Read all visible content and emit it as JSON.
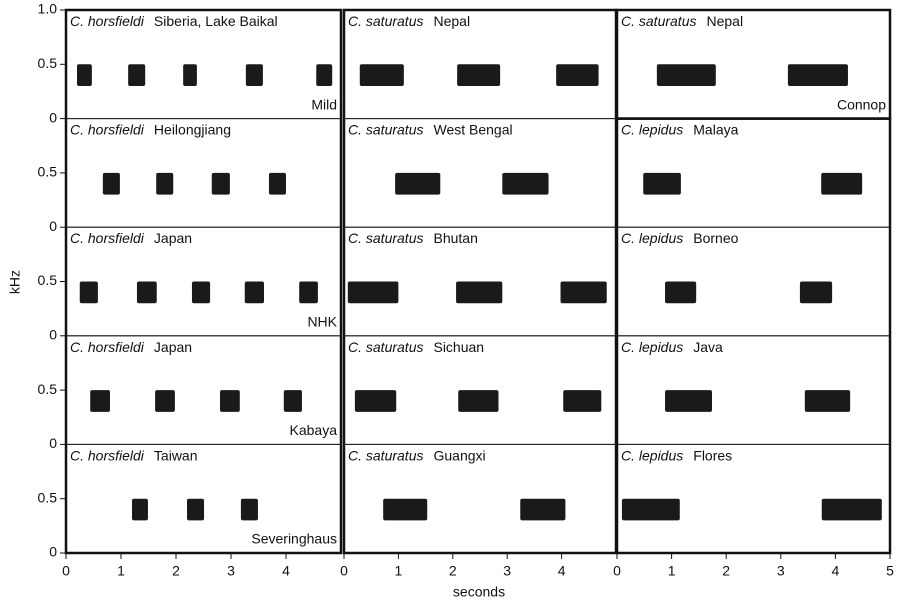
{
  "chart_data": {
    "type": "sonogram",
    "x_label": "seconds",
    "y_label": "kHz",
    "xlim": [
      0,
      5
    ],
    "ylim": [
      0,
      1
    ],
    "note_band": [
      0.3,
      0.5
    ],
    "color": "#1a1a1a",
    "rows": [
      {
        "yticks": [
          0,
          0.5,
          {
            "value": 1,
            "label": "1.0"
          }
        ]
      },
      {
        "yticks": [
          0,
          0.5
        ]
      },
      {
        "yticks": [
          0,
          0.5
        ]
      },
      {
        "yticks": [
          0,
          0.5
        ]
      },
      {
        "yticks": [
          0,
          0.5
        ]
      }
    ],
    "columns": [
      {
        "xticks": [
          0,
          1,
          2,
          3,
          4
        ],
        "panels": [
          {
            "species": "C. horsfieldi",
            "location": "Siberia, Lake Baikal",
            "credit": "Mild",
            "notes": [
              [
                0.2,
                0.47
              ],
              [
                1.13,
                1.44
              ],
              [
                2.13,
                2.38
              ],
              [
                3.27,
                3.58
              ],
              [
                4.55,
                4.84
              ]
            ]
          },
          {
            "species": "C. horsfieldi",
            "location": "Heilongjiang",
            "notes": [
              [
                0.67,
                0.98
              ],
              [
                1.64,
                1.95
              ],
              [
                2.65,
                2.98
              ],
              [
                3.69,
                4.0
              ]
            ]
          },
          {
            "species": "C. horsfieldi",
            "location": "Japan",
            "credit": "NHK",
            "notes": [
              [
                0.25,
                0.58
              ],
              [
                1.29,
                1.65
              ],
              [
                2.29,
                2.62
              ],
              [
                3.25,
                3.6
              ],
              [
                4.24,
                4.58
              ]
            ]
          },
          {
            "species": "C. horsfieldi",
            "location": "Japan",
            "credit": "Kabaya",
            "notes": [
              [
                0.44,
                0.8
              ],
              [
                1.62,
                1.98
              ],
              [
                2.8,
                3.16
              ],
              [
                3.96,
                4.29
              ]
            ]
          },
          {
            "species": "C. horsfieldi",
            "location": "Taiwan",
            "credit": "Severinghaus",
            "notes": [
              [
                1.2,
                1.49
              ],
              [
                2.2,
                2.51
              ],
              [
                3.18,
                3.49
              ]
            ]
          }
        ]
      },
      {
        "xticks": [
          0,
          1,
          2,
          3,
          4
        ],
        "panels": [
          {
            "species": "C. saturatus",
            "location": "Nepal",
            "notes": [
              [
                0.29,
                1.1
              ],
              [
                2.08,
                2.87
              ],
              [
                3.9,
                4.68
              ]
            ]
          },
          {
            "species": "C. saturatus",
            "location": "West Bengal",
            "notes": [
              [
                0.94,
                1.77
              ],
              [
                2.91,
                3.76
              ]
            ]
          },
          {
            "species": "C. saturatus",
            "location": "Bhutan",
            "notes": [
              [
                0.07,
                1.0
              ],
              [
                2.06,
                2.91
              ],
              [
                3.98,
                4.83
              ]
            ]
          },
          {
            "species": "C. saturatus",
            "location": "Sichuan",
            "notes": [
              [
                0.2,
                0.96
              ],
              [
                2.1,
                2.84
              ],
              [
                4.03,
                4.73
              ]
            ]
          },
          {
            "species": "C. saturatus",
            "location": "Guangxi",
            "notes": [
              [
                0.72,
                1.53
              ],
              [
                3.24,
                4.07
              ]
            ]
          }
        ]
      },
      {
        "xticks": [
          0,
          1,
          2,
          3,
          4,
          5
        ],
        "panels": [
          {
            "species": "C. saturatus",
            "location": "Nepal",
            "credit": "Connop",
            "notes": [
              [
                0.73,
                1.81
              ],
              [
                3.13,
                4.23
              ]
            ]
          },
          {
            "species": "C. lepidus",
            "location": "Malaya",
            "notes": [
              [
                0.48,
                1.17
              ],
              [
                3.74,
                4.49
              ]
            ]
          },
          {
            "species": "C. lepidus",
            "location": "Borneo",
            "notes": [
              [
                0.88,
                1.45
              ],
              [
                3.35,
                3.94
              ]
            ]
          },
          {
            "species": "C. lepidus",
            "location": "Java",
            "notes": [
              [
                0.88,
                1.74
              ],
              [
                3.44,
                4.27
              ]
            ]
          },
          {
            "species": "C. lepidus",
            "location": "Flores",
            "notes": [
              [
                0.09,
                1.15
              ],
              [
                3.75,
                4.85
              ]
            ]
          }
        ]
      }
    ]
  }
}
